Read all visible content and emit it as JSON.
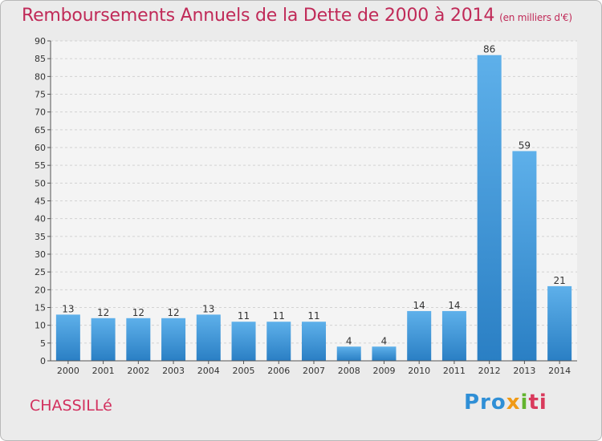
{
  "header": {
    "title": "Remboursements Annuels de la Dette de 2000 à 2014",
    "unit": "(en milliers d'€)"
  },
  "footer": {
    "commune": "CHASSILLé",
    "logo_parts": [
      "Pro",
      "x",
      "i",
      "ti"
    ]
  },
  "colors": {
    "title": "#c02a58",
    "bar_top": "#5eb0ea",
    "bar_bottom": "#2a7fc4",
    "background": "#ebebeb",
    "plot_background": "#f4f4f4"
  },
  "chart_data": {
    "type": "bar",
    "title": "Remboursements Annuels de la Dette de 2000 à 2014",
    "subtitle": "(en milliers d'€)",
    "categories": [
      "2000",
      "2001",
      "2002",
      "2003",
      "2004",
      "2005",
      "2006",
      "2007",
      "2008",
      "2009",
      "2010",
      "2011",
      "2012",
      "2013",
      "2014"
    ],
    "values": [
      13,
      12,
      12,
      12,
      13,
      11,
      11,
      11,
      4,
      4,
      14,
      14,
      86,
      59,
      21
    ],
    "ylim": [
      0,
      90
    ],
    "yticks": [
      0,
      5,
      10,
      15,
      20,
      25,
      30,
      35,
      40,
      45,
      50,
      55,
      60,
      65,
      70,
      75,
      80,
      85,
      90
    ],
    "grid": true,
    "data_labels": true
  }
}
